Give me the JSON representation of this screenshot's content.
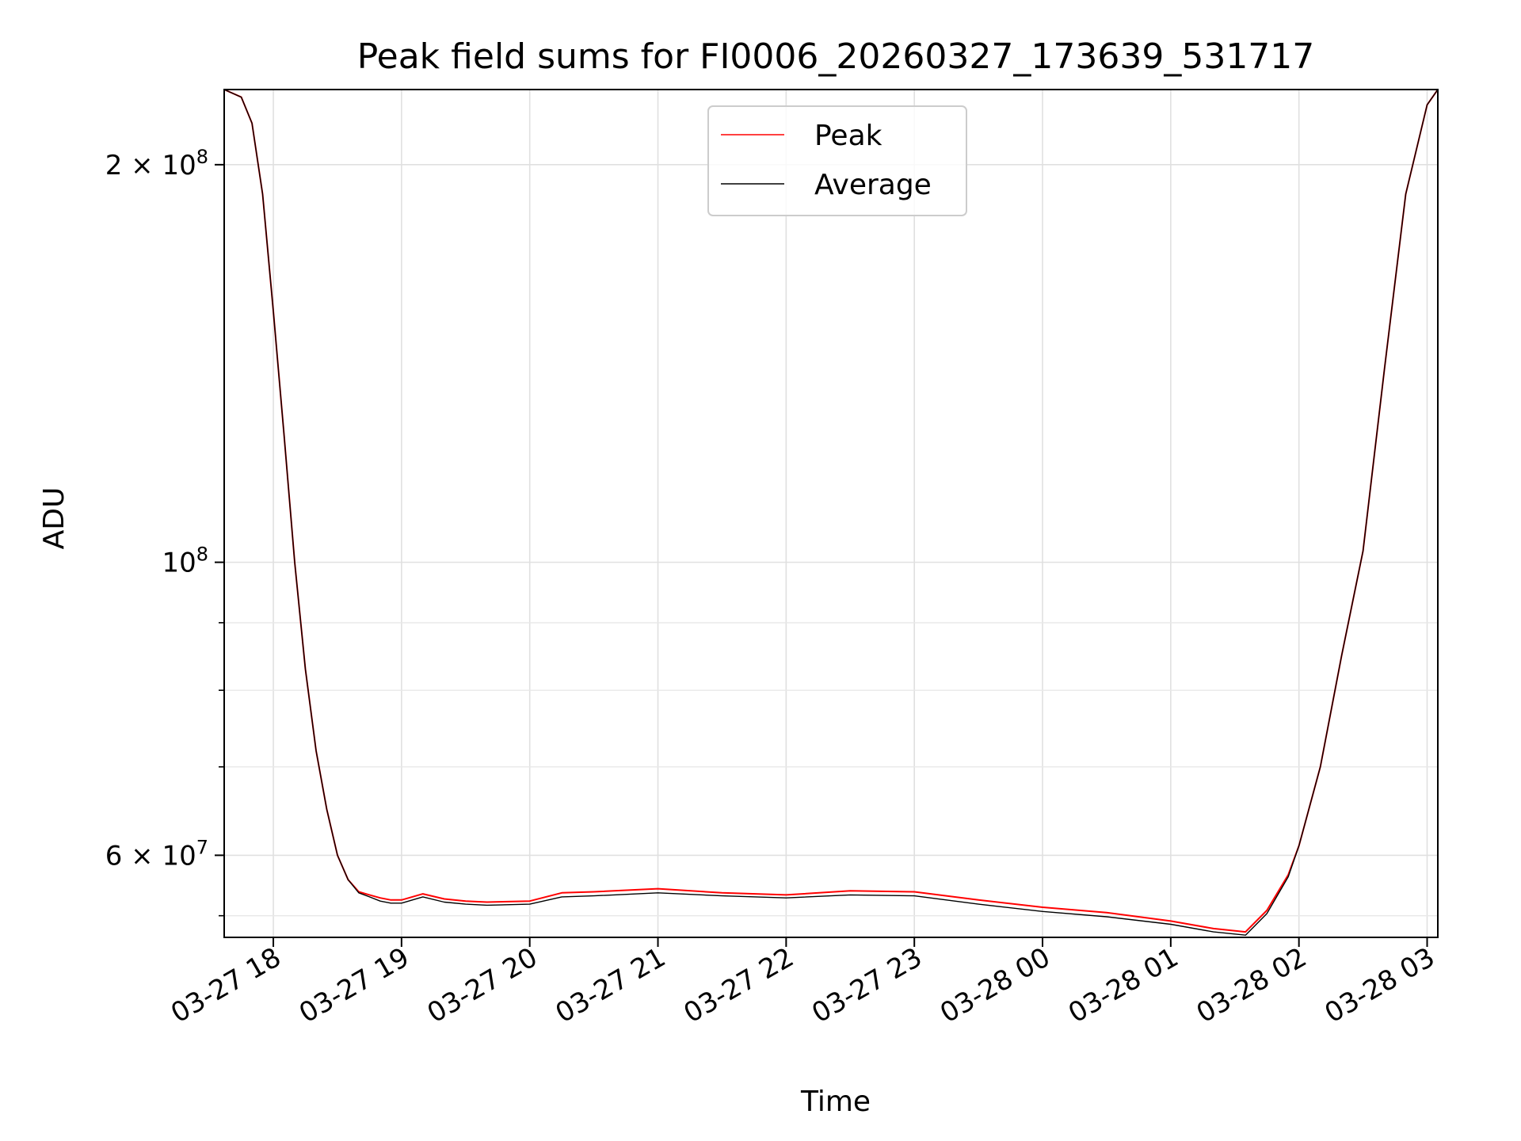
{
  "chart_data": {
    "type": "line",
    "title": "Peak field sums for FI0006_20260327_173639_531717",
    "xlabel": "Time",
    "ylabel": "ADU",
    "yscale": "log",
    "grid": true,
    "legend_position": "upper-center",
    "xlim": [
      "2026-03-27 17:37",
      "2026-03-28 03:05"
    ],
    "ylim": [
      52000000,
      228000000
    ],
    "x_ticks": [
      {
        "value": "2026-03-27 18:00",
        "label": "03-27 18"
      },
      {
        "value": "2026-03-27 19:00",
        "label": "03-27 19"
      },
      {
        "value": "2026-03-27 20:00",
        "label": "03-27 20"
      },
      {
        "value": "2026-03-27 21:00",
        "label": "03-27 21"
      },
      {
        "value": "2026-03-27 22:00",
        "label": "03-27 22"
      },
      {
        "value": "2026-03-27 23:00",
        "label": "03-27 23"
      },
      {
        "value": "2026-03-28 00:00",
        "label": "03-28 00"
      },
      {
        "value": "2026-03-28 01:00",
        "label": "03-28 01"
      },
      {
        "value": "2026-03-28 02:00",
        "label": "03-28 02"
      },
      {
        "value": "2026-03-28 03:00",
        "label": "03-28 03"
      }
    ],
    "y_major_ticks": [
      {
        "value": 200000000,
        "label_base": "2 × 10",
        "label_exp": "8"
      },
      {
        "value": 100000000,
        "label_base": "10",
        "label_exp": "8"
      },
      {
        "value": 60000000,
        "label_base": "6 × 10",
        "label_exp": "7"
      }
    ],
    "y_minor_ticks": [
      54000000,
      70000000,
      80000000,
      90000000
    ],
    "series": [
      {
        "name": "Peak",
        "color": "#ff0000",
        "x": [
          "2026-03-27 17:37",
          "2026-03-27 17:45",
          "2026-03-27 17:50",
          "2026-03-27 17:55",
          "2026-03-27 18:00",
          "2026-03-27 18:05",
          "2026-03-27 18:10",
          "2026-03-27 18:15",
          "2026-03-27 18:20",
          "2026-03-27 18:25",
          "2026-03-27 18:30",
          "2026-03-27 18:35",
          "2026-03-27 18:40",
          "2026-03-27 18:45",
          "2026-03-27 18:50",
          "2026-03-27 18:55",
          "2026-03-27 19:00",
          "2026-03-27 19:10",
          "2026-03-27 19:20",
          "2026-03-27 19:30",
          "2026-03-27 19:40",
          "2026-03-27 20:00",
          "2026-03-27 20:15",
          "2026-03-27 20:30",
          "2026-03-27 21:00",
          "2026-03-27 21:30",
          "2026-03-27 22:00",
          "2026-03-27 22:30",
          "2026-03-27 23:00",
          "2026-03-27 23:30",
          "2026-03-28 00:00",
          "2026-03-28 00:30",
          "2026-03-28 01:00",
          "2026-03-28 01:20",
          "2026-03-28 01:35",
          "2026-03-28 01:45",
          "2026-03-28 01:55",
          "2026-03-28 02:00",
          "2026-03-28 02:10",
          "2026-03-28 02:20",
          "2026-03-28 02:30",
          "2026-03-28 02:40",
          "2026-03-28 02:50",
          "2026-03-28 03:00",
          "2026-03-28 03:05"
        ],
        "y": [
          228000000,
          225000000,
          215000000,
          190000000,
          155000000,
          125000000,
          100000000,
          83000000,
          72000000,
          65000000,
          60000000,
          57500000,
          56300000,
          56000000,
          55700000,
          55500000,
          55500000,
          56100000,
          55600000,
          55400000,
          55300000,
          55400000,
          56200000,
          56300000,
          56600000,
          56200000,
          56000000,
          56400000,
          56300000,
          55500000,
          54800000,
          54300000,
          53500000,
          52800000,
          52500000,
          54500000,
          58000000,
          61000000,
          70000000,
          85000000,
          102000000,
          140000000,
          190000000,
          222000000,
          228000000
        ]
      },
      {
        "name": "Average",
        "color": "#000000",
        "x": [
          "2026-03-27 17:37",
          "2026-03-27 17:45",
          "2026-03-27 17:50",
          "2026-03-27 17:55",
          "2026-03-27 18:00",
          "2026-03-27 18:05",
          "2026-03-27 18:10",
          "2026-03-27 18:15",
          "2026-03-27 18:20",
          "2026-03-27 18:25",
          "2026-03-27 18:30",
          "2026-03-27 18:35",
          "2026-03-27 18:40",
          "2026-03-27 18:45",
          "2026-03-27 18:50",
          "2026-03-27 18:55",
          "2026-03-27 19:00",
          "2026-03-27 19:10",
          "2026-03-27 19:20",
          "2026-03-27 19:30",
          "2026-03-27 19:40",
          "2026-03-27 20:00",
          "2026-03-27 20:15",
          "2026-03-27 20:30",
          "2026-03-27 21:00",
          "2026-03-27 21:30",
          "2026-03-27 22:00",
          "2026-03-27 22:30",
          "2026-03-27 23:00",
          "2026-03-27 23:30",
          "2026-03-28 00:00",
          "2026-03-28 00:30",
          "2026-03-28 01:00",
          "2026-03-28 01:20",
          "2026-03-28 01:35",
          "2026-03-28 01:45",
          "2026-03-28 01:55",
          "2026-03-28 02:00",
          "2026-03-28 02:10",
          "2026-03-28 02:20",
          "2026-03-28 02:30",
          "2026-03-28 02:40",
          "2026-03-28 02:50",
          "2026-03-28 03:00",
          "2026-03-28 03:05"
        ],
        "y": [
          228000000,
          225000000,
          215000000,
          190000000,
          155000000,
          125000000,
          100000000,
          83000000,
          72000000,
          65000000,
          60000000,
          57500000,
          56200000,
          55800000,
          55400000,
          55200000,
          55200000,
          55800000,
          55300000,
          55100000,
          55000000,
          55100000,
          55800000,
          55900000,
          56200000,
          55900000,
          55700000,
          56000000,
          55900000,
          55100000,
          54400000,
          53900000,
          53200000,
          52500000,
          52200000,
          54200000,
          57800000,
          61000000,
          70000000,
          85000000,
          102000000,
          140000000,
          190000000,
          222000000,
          228000000
        ]
      }
    ]
  }
}
